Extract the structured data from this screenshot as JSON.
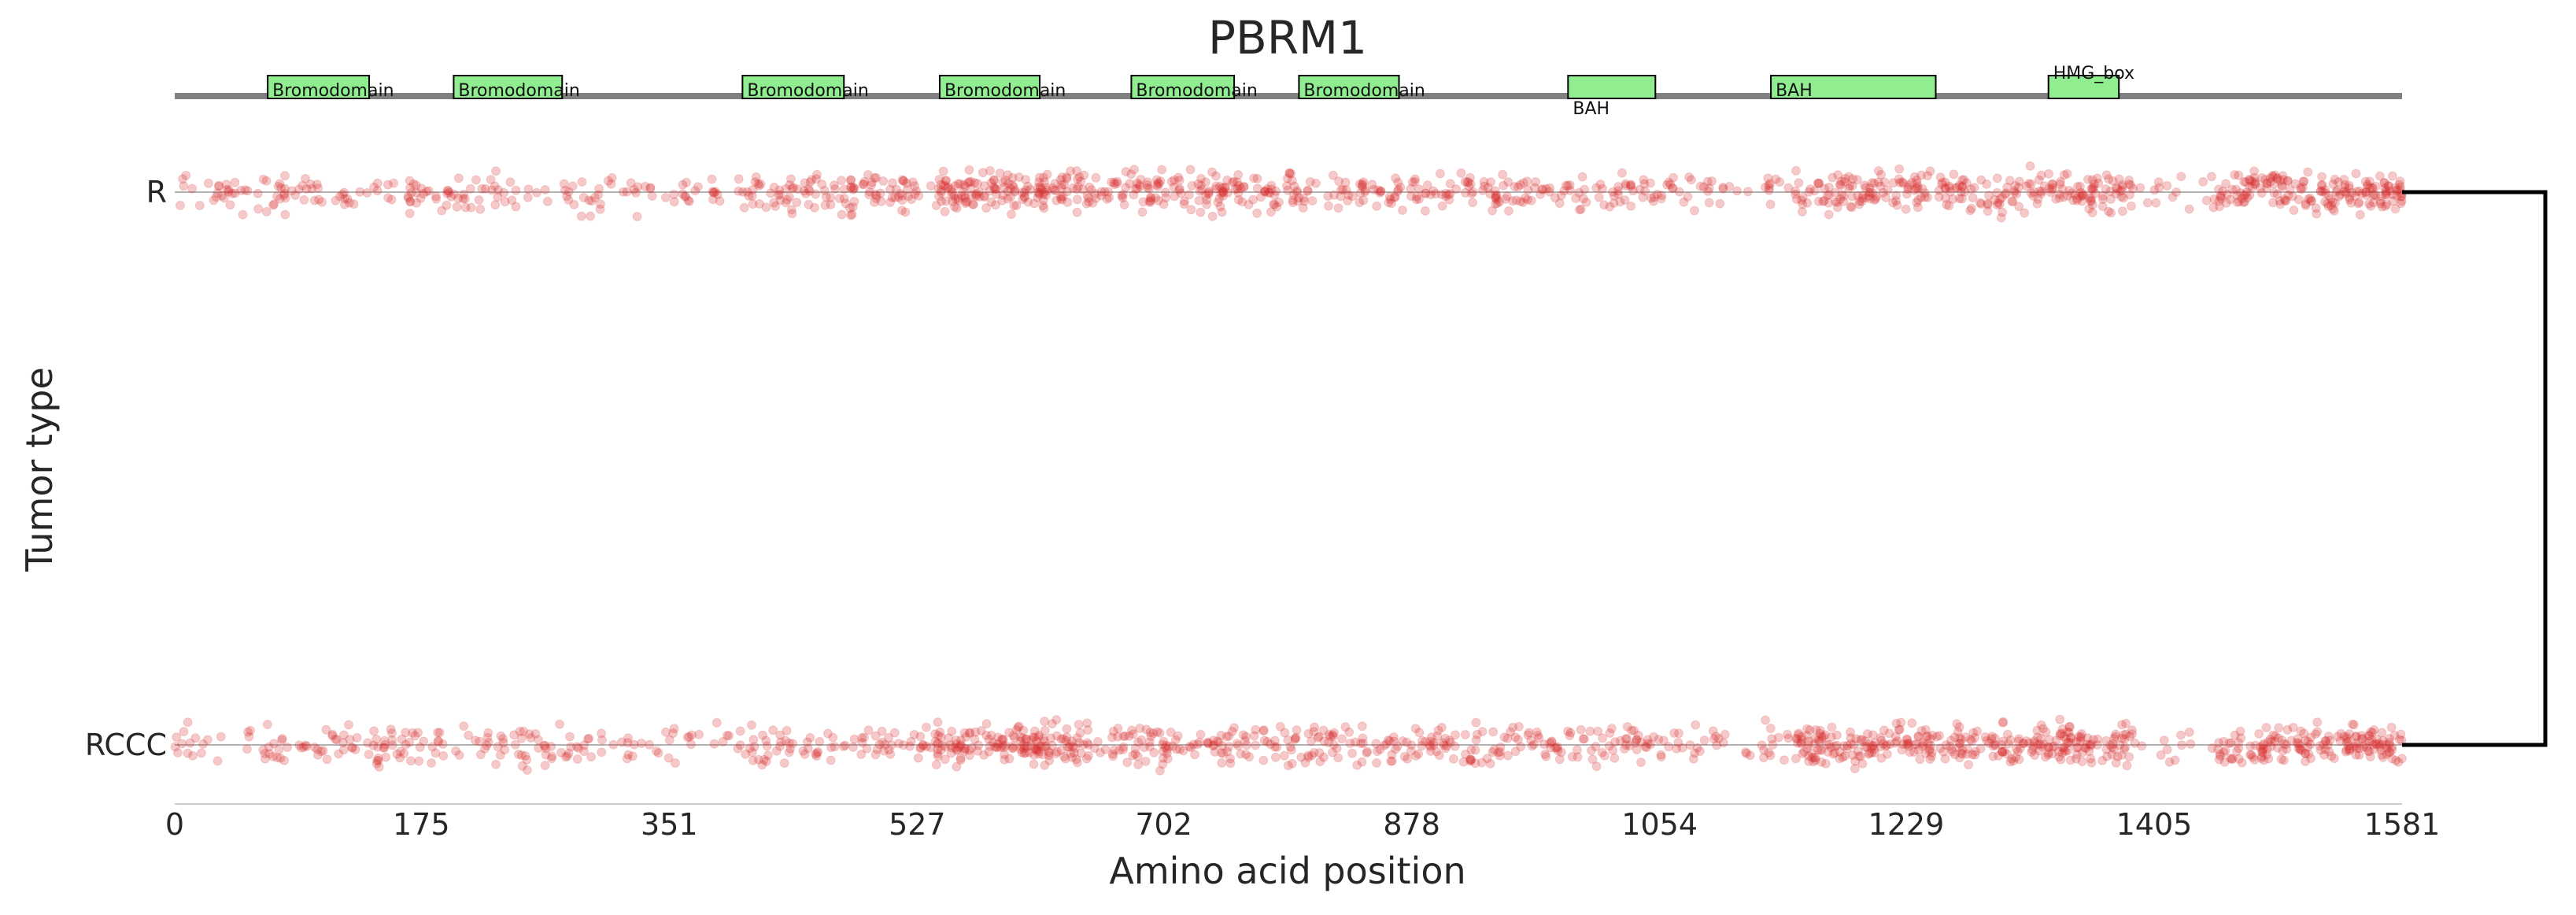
{
  "chart_data": {
    "type": "scatter",
    "title": "PBRM1",
    "xlabel": "Amino acid position",
    "ylabel": "Tumor type",
    "xlim": [
      0,
      1581
    ],
    "xticks": [
      0,
      175,
      351,
      527,
      702,
      878,
      1054,
      1229,
      1405,
      1581
    ],
    "categories": [
      "R",
      "RCCC"
    ],
    "point_color": "#d62728",
    "domain_color": "#90ee90",
    "backbone_color": "#808080",
    "domains": [
      {
        "name": "Bromodomain",
        "start": 66,
        "end": 138
      },
      {
        "name": "Bromodomain",
        "start": 198,
        "end": 275
      },
      {
        "name": "Bromodomain",
        "start": 403,
        "end": 475
      },
      {
        "name": "Bromodomain",
        "start": 543,
        "end": 614
      },
      {
        "name": "Bromodomain",
        "start": 679,
        "end": 752
      },
      {
        "name": "Bromodomain",
        "start": 798,
        "end": 869
      },
      {
        "name": "BAH",
        "start": 989,
        "end": 1051
      },
      {
        "name": "BAH",
        "start": 1133,
        "end": 1250
      },
      {
        "name": "HMG_box",
        "start": 1330,
        "end": 1380
      }
    ],
    "density_profile": [
      {
        "range": [
          0,
          40
        ],
        "weight": 1.0
      },
      {
        "range": [
          40,
          170
        ],
        "weight": 1.2
      },
      {
        "range": [
          170,
          300
        ],
        "weight": 1.0
      },
      {
        "range": [
          300,
          400
        ],
        "weight": 0.8
      },
      {
        "range": [
          400,
          540
        ],
        "weight": 1.3
      },
      {
        "range": [
          540,
          630
        ],
        "weight": 3.2
      },
      {
        "range": [
          630,
          780
        ],
        "weight": 2.0
      },
      {
        "range": [
          780,
          950
        ],
        "weight": 1.6
      },
      {
        "range": [
          950,
          1080
        ],
        "weight": 1.3
      },
      {
        "range": [
          1080,
          1150
        ],
        "weight": 0.8
      },
      {
        "range": [
          1150,
          1390
        ],
        "weight": 2.4
      },
      {
        "range": [
          1390,
          1450
        ],
        "weight": 0.6
      },
      {
        "range": [
          1450,
          1581
        ],
        "weight": 2.6
      }
    ],
    "points_per_category": 1300,
    "grid": false,
    "legend": "none"
  }
}
